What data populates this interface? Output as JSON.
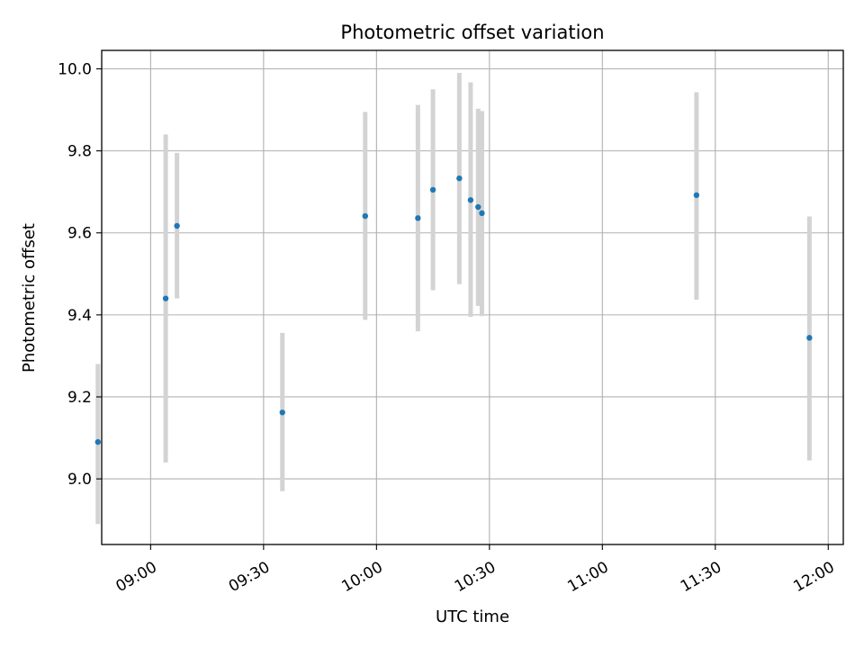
{
  "chart_data": {
    "type": "scatter",
    "title": "Photometric offset variation",
    "xlabel": "UTC time",
    "ylabel": "Photometric offset",
    "xlim": [
      "08:47",
      "12:04"
    ],
    "ylim": [
      8.84,
      10.045
    ],
    "x_ticks": [
      "09:00",
      "09:30",
      "10:00",
      "10:30",
      "11:00",
      "11:30",
      "12:00"
    ],
    "y_ticks": [
      "9.0",
      "9.2",
      "9.4",
      "9.6",
      "9.8",
      "10.0"
    ],
    "grid": true,
    "colors": {
      "point": "#1f77b4",
      "errorbar": "#d3d3d3",
      "grid": "#b0b0b0"
    },
    "points": [
      {
        "x": "08:46",
        "y": 9.09,
        "yerr_low": 8.89,
        "yerr_high": 9.28
      },
      {
        "x": "09:04",
        "y": 9.44,
        "yerr_low": 9.04,
        "yerr_high": 9.84
      },
      {
        "x": "09:07",
        "y": 9.617,
        "yerr_low": 9.44,
        "yerr_high": 9.795
      },
      {
        "x": "09:35",
        "y": 9.162,
        "yerr_low": 8.97,
        "yerr_high": 9.356
      },
      {
        "x": "09:57",
        "y": 9.641,
        "yerr_low": 9.388,
        "yerr_high": 9.895
      },
      {
        "x": "10:11",
        "y": 9.636,
        "yerr_low": 9.36,
        "yerr_high": 9.912
      },
      {
        "x": "10:15",
        "y": 9.705,
        "yerr_low": 9.46,
        "yerr_high": 9.95
      },
      {
        "x": "10:22",
        "y": 9.733,
        "yerr_low": 9.475,
        "yerr_high": 9.99
      },
      {
        "x": "10:25",
        "y": 9.68,
        "yerr_low": 9.395,
        "yerr_high": 9.967
      },
      {
        "x": "10:27",
        "y": 9.663,
        "yerr_low": 9.422,
        "yerr_high": 9.903
      },
      {
        "x": "10:28",
        "y": 9.648,
        "yerr_low": 9.397,
        "yerr_high": 9.897
      },
      {
        "x": "11:25",
        "y": 9.692,
        "yerr_low": 9.437,
        "yerr_high": 9.943
      },
      {
        "x": "11:55",
        "y": 9.344,
        "yerr_low": 9.045,
        "yerr_high": 9.64
      }
    ]
  }
}
